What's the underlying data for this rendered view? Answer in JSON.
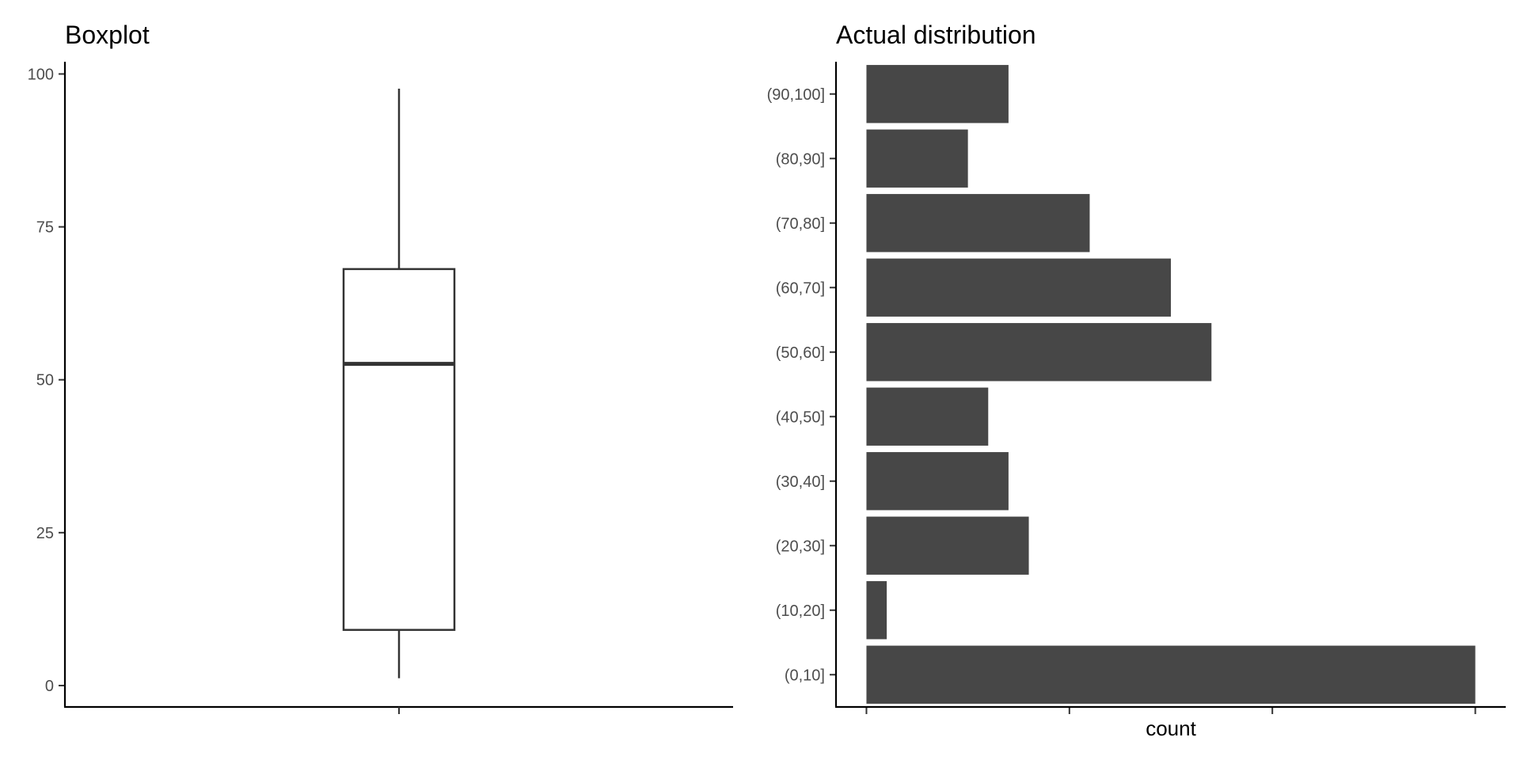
{
  "chart_data": [
    {
      "type": "boxplot",
      "title": "Boxplot",
      "xlabel": "",
      "ylabel": "",
      "ylim": [
        -3.5,
        102
      ],
      "yticks": [
        0,
        25,
        50,
        75,
        100
      ],
      "box": {
        "min": 1.2,
        "q1": 9.1,
        "median": 52.6,
        "q3": 68.1,
        "max": 97.6
      },
      "grid": false
    },
    {
      "type": "bar",
      "orientation": "horizontal",
      "title": "Actual distribution",
      "xlabel": "count",
      "ylabel": "",
      "categories": [
        "(0,10]",
        "(10,20]",
        "(20,30]",
        "(30,40]",
        "(40,50]",
        "(50,60]",
        "(60,70]",
        "(70,80]",
        "(80,90]",
        "(90,100]"
      ],
      "values": [
        30,
        1,
        8,
        7,
        6,
        17,
        15,
        11,
        5,
        7
      ],
      "xlim": [
        -1.5,
        31.5
      ],
      "xticks": [
        0,
        10,
        20,
        30
      ],
      "show_xtick_labels": false,
      "grid": false
    }
  ]
}
